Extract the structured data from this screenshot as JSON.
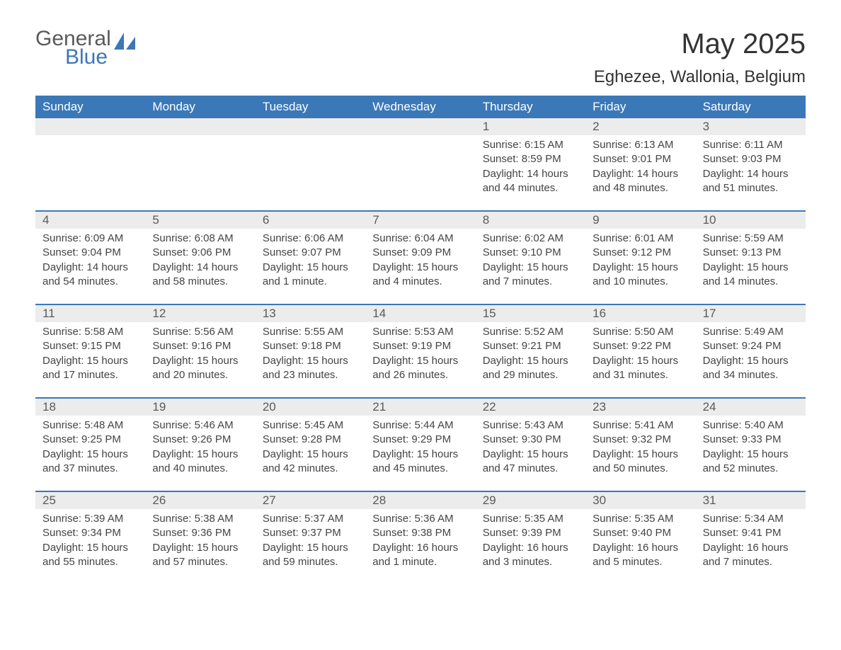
{
  "logo": {
    "general": "General",
    "blue": "Blue",
    "icon_color": "#3b78b8"
  },
  "title": "May 2025",
  "location": "Eghezee, Wallonia, Belgium",
  "colors": {
    "header_bg": "#3b78b8",
    "header_text": "#ffffff",
    "daynum_bg": "#ececec",
    "daynum_text": "#5a5a5a",
    "body_text": "#444444",
    "row_divider": "#3b78b8",
    "page_bg": "#ffffff"
  },
  "typography": {
    "title_fontsize": 40,
    "location_fontsize": 24,
    "header_fontsize": 17,
    "daynum_fontsize": 17,
    "content_fontsize": 15,
    "font_family": "Arial"
  },
  "day_names": [
    "Sunday",
    "Monday",
    "Tuesday",
    "Wednesday",
    "Thursday",
    "Friday",
    "Saturday"
  ],
  "weeks": [
    [
      {
        "empty": true
      },
      {
        "empty": true
      },
      {
        "empty": true
      },
      {
        "empty": true
      },
      {
        "num": "1",
        "sunrise": "Sunrise: 6:15 AM",
        "sunset": "Sunset: 8:59 PM",
        "daylight": "Daylight: 14 hours and 44 minutes."
      },
      {
        "num": "2",
        "sunrise": "Sunrise: 6:13 AM",
        "sunset": "Sunset: 9:01 PM",
        "daylight": "Daylight: 14 hours and 48 minutes."
      },
      {
        "num": "3",
        "sunrise": "Sunrise: 6:11 AM",
        "sunset": "Sunset: 9:03 PM",
        "daylight": "Daylight: 14 hours and 51 minutes."
      }
    ],
    [
      {
        "num": "4",
        "sunrise": "Sunrise: 6:09 AM",
        "sunset": "Sunset: 9:04 PM",
        "daylight": "Daylight: 14 hours and 54 minutes."
      },
      {
        "num": "5",
        "sunrise": "Sunrise: 6:08 AM",
        "sunset": "Sunset: 9:06 PM",
        "daylight": "Daylight: 14 hours and 58 minutes."
      },
      {
        "num": "6",
        "sunrise": "Sunrise: 6:06 AM",
        "sunset": "Sunset: 9:07 PM",
        "daylight": "Daylight: 15 hours and 1 minute."
      },
      {
        "num": "7",
        "sunrise": "Sunrise: 6:04 AM",
        "sunset": "Sunset: 9:09 PM",
        "daylight": "Daylight: 15 hours and 4 minutes."
      },
      {
        "num": "8",
        "sunrise": "Sunrise: 6:02 AM",
        "sunset": "Sunset: 9:10 PM",
        "daylight": "Daylight: 15 hours and 7 minutes."
      },
      {
        "num": "9",
        "sunrise": "Sunrise: 6:01 AM",
        "sunset": "Sunset: 9:12 PM",
        "daylight": "Daylight: 15 hours and 10 minutes."
      },
      {
        "num": "10",
        "sunrise": "Sunrise: 5:59 AM",
        "sunset": "Sunset: 9:13 PM",
        "daylight": "Daylight: 15 hours and 14 minutes."
      }
    ],
    [
      {
        "num": "11",
        "sunrise": "Sunrise: 5:58 AM",
        "sunset": "Sunset: 9:15 PM",
        "daylight": "Daylight: 15 hours and 17 minutes."
      },
      {
        "num": "12",
        "sunrise": "Sunrise: 5:56 AM",
        "sunset": "Sunset: 9:16 PM",
        "daylight": "Daylight: 15 hours and 20 minutes."
      },
      {
        "num": "13",
        "sunrise": "Sunrise: 5:55 AM",
        "sunset": "Sunset: 9:18 PM",
        "daylight": "Daylight: 15 hours and 23 minutes."
      },
      {
        "num": "14",
        "sunrise": "Sunrise: 5:53 AM",
        "sunset": "Sunset: 9:19 PM",
        "daylight": "Daylight: 15 hours and 26 minutes."
      },
      {
        "num": "15",
        "sunrise": "Sunrise: 5:52 AM",
        "sunset": "Sunset: 9:21 PM",
        "daylight": "Daylight: 15 hours and 29 minutes."
      },
      {
        "num": "16",
        "sunrise": "Sunrise: 5:50 AM",
        "sunset": "Sunset: 9:22 PM",
        "daylight": "Daylight: 15 hours and 31 minutes."
      },
      {
        "num": "17",
        "sunrise": "Sunrise: 5:49 AM",
        "sunset": "Sunset: 9:24 PM",
        "daylight": "Daylight: 15 hours and 34 minutes."
      }
    ],
    [
      {
        "num": "18",
        "sunrise": "Sunrise: 5:48 AM",
        "sunset": "Sunset: 9:25 PM",
        "daylight": "Daylight: 15 hours and 37 minutes."
      },
      {
        "num": "19",
        "sunrise": "Sunrise: 5:46 AM",
        "sunset": "Sunset: 9:26 PM",
        "daylight": "Daylight: 15 hours and 40 minutes."
      },
      {
        "num": "20",
        "sunrise": "Sunrise: 5:45 AM",
        "sunset": "Sunset: 9:28 PM",
        "daylight": "Daylight: 15 hours and 42 minutes."
      },
      {
        "num": "21",
        "sunrise": "Sunrise: 5:44 AM",
        "sunset": "Sunset: 9:29 PM",
        "daylight": "Daylight: 15 hours and 45 minutes."
      },
      {
        "num": "22",
        "sunrise": "Sunrise: 5:43 AM",
        "sunset": "Sunset: 9:30 PM",
        "daylight": "Daylight: 15 hours and 47 minutes."
      },
      {
        "num": "23",
        "sunrise": "Sunrise: 5:41 AM",
        "sunset": "Sunset: 9:32 PM",
        "daylight": "Daylight: 15 hours and 50 minutes."
      },
      {
        "num": "24",
        "sunrise": "Sunrise: 5:40 AM",
        "sunset": "Sunset: 9:33 PM",
        "daylight": "Daylight: 15 hours and 52 minutes."
      }
    ],
    [
      {
        "num": "25",
        "sunrise": "Sunrise: 5:39 AM",
        "sunset": "Sunset: 9:34 PM",
        "daylight": "Daylight: 15 hours and 55 minutes."
      },
      {
        "num": "26",
        "sunrise": "Sunrise: 5:38 AM",
        "sunset": "Sunset: 9:36 PM",
        "daylight": "Daylight: 15 hours and 57 minutes."
      },
      {
        "num": "27",
        "sunrise": "Sunrise: 5:37 AM",
        "sunset": "Sunset: 9:37 PM",
        "daylight": "Daylight: 15 hours and 59 minutes."
      },
      {
        "num": "28",
        "sunrise": "Sunrise: 5:36 AM",
        "sunset": "Sunset: 9:38 PM",
        "daylight": "Daylight: 16 hours and 1 minute."
      },
      {
        "num": "29",
        "sunrise": "Sunrise: 5:35 AM",
        "sunset": "Sunset: 9:39 PM",
        "daylight": "Daylight: 16 hours and 3 minutes."
      },
      {
        "num": "30",
        "sunrise": "Sunrise: 5:35 AM",
        "sunset": "Sunset: 9:40 PM",
        "daylight": "Daylight: 16 hours and 5 minutes."
      },
      {
        "num": "31",
        "sunrise": "Sunrise: 5:34 AM",
        "sunset": "Sunset: 9:41 PM",
        "daylight": "Daylight: 16 hours and 7 minutes."
      }
    ]
  ]
}
